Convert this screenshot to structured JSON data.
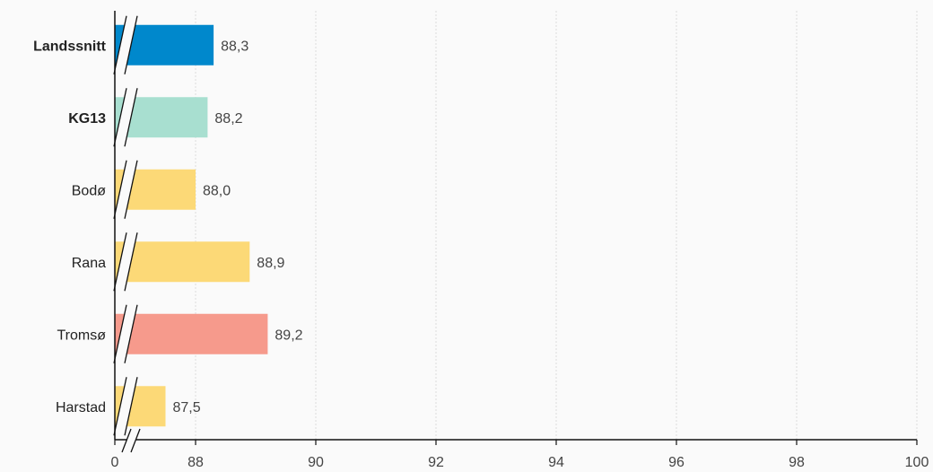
{
  "chart_data": {
    "type": "bar",
    "orientation": "horizontal",
    "axis_break": true,
    "categories": [
      "Landssnitt",
      "KG13",
      "Bodø",
      "Rana",
      "Tromsø",
      "Harstad"
    ],
    "bold_categories": [
      "Landssnitt",
      "KG13"
    ],
    "values": [
      88.3,
      88.2,
      88.0,
      88.9,
      89.2,
      87.5
    ],
    "value_labels": [
      "88,3",
      "88,2",
      "88,0",
      "88,9",
      "89,2",
      "87,5"
    ],
    "colors": [
      "#0088cc",
      "#a8dfd0",
      "#fcd977",
      "#fcd977",
      "#f69a8c",
      "#fcd977"
    ],
    "xticks": [
      0,
      88,
      90,
      92,
      94,
      96,
      98,
      100
    ],
    "xtick_labels": [
      "0",
      "88",
      "90",
      "92",
      "94",
      "96",
      "98",
      "100"
    ],
    "xlim_after_break": [
      87,
      100
    ],
    "grid": "vertical",
    "title": "",
    "xlabel": "",
    "ylabel": ""
  }
}
